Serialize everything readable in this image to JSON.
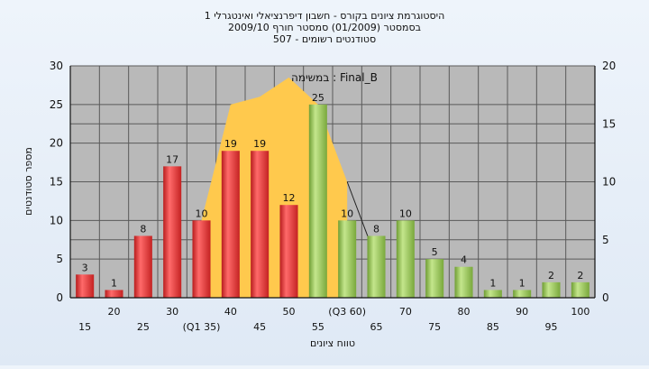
{
  "chart_data": {
    "type": "bar",
    "title_lines": [
      "היסטוגרמת ציונים בקורס - חשבון דיפרנציאלי ואינטגרלי 1",
      "בסמסטר  (01/2009)  סמסטר חורף  2009/10",
      "סטודנטים רשומים - 507"
    ],
    "xlabel": "טווח ציונים",
    "ylabel": "מספר סטודנטים",
    "ylim": [
      0,
      30
    ],
    "y_ticks": [
      0,
      5,
      10,
      15,
      20,
      25,
      30
    ],
    "y2lim": [
      0,
      20
    ],
    "y2_ticks": [
      0,
      5,
      10,
      15,
      20
    ],
    "grid": true,
    "categories": [
      "15",
      "20",
      "25",
      "30",
      "(Q1 35)",
      "40",
      "45",
      "50",
      "55",
      "(Q3 60)",
      "65",
      "70",
      "75",
      "80",
      "85",
      "90",
      "95",
      "100"
    ],
    "values": [
      3,
      1,
      8,
      17,
      10,
      19,
      19,
      12,
      25,
      10,
      8,
      10,
      5,
      4,
      1,
      1,
      2,
      2
    ],
    "bar_groups": [
      "below",
      "below",
      "below",
      "below",
      "below",
      "below",
      "below",
      "below",
      "above",
      "above",
      "above",
      "above",
      "above",
      "above",
      "above",
      "above",
      "above",
      "above"
    ],
    "overlay_series": {
      "name": "במשימה : Final_B",
      "type": "area",
      "x_categories": [
        "(Q1 35)",
        "40",
        "45",
        "50",
        "55",
        "(Q3 60)"
      ],
      "values": [
        10,
        25,
        26,
        28.5,
        25,
        15
      ]
    },
    "colors": {
      "bar_below": "#e33a3a",
      "bar_above": "#9ccc5a",
      "area": "#ffc94d",
      "plot_bg": "#b9b9b9",
      "grid": "#5a5a5a"
    }
  }
}
